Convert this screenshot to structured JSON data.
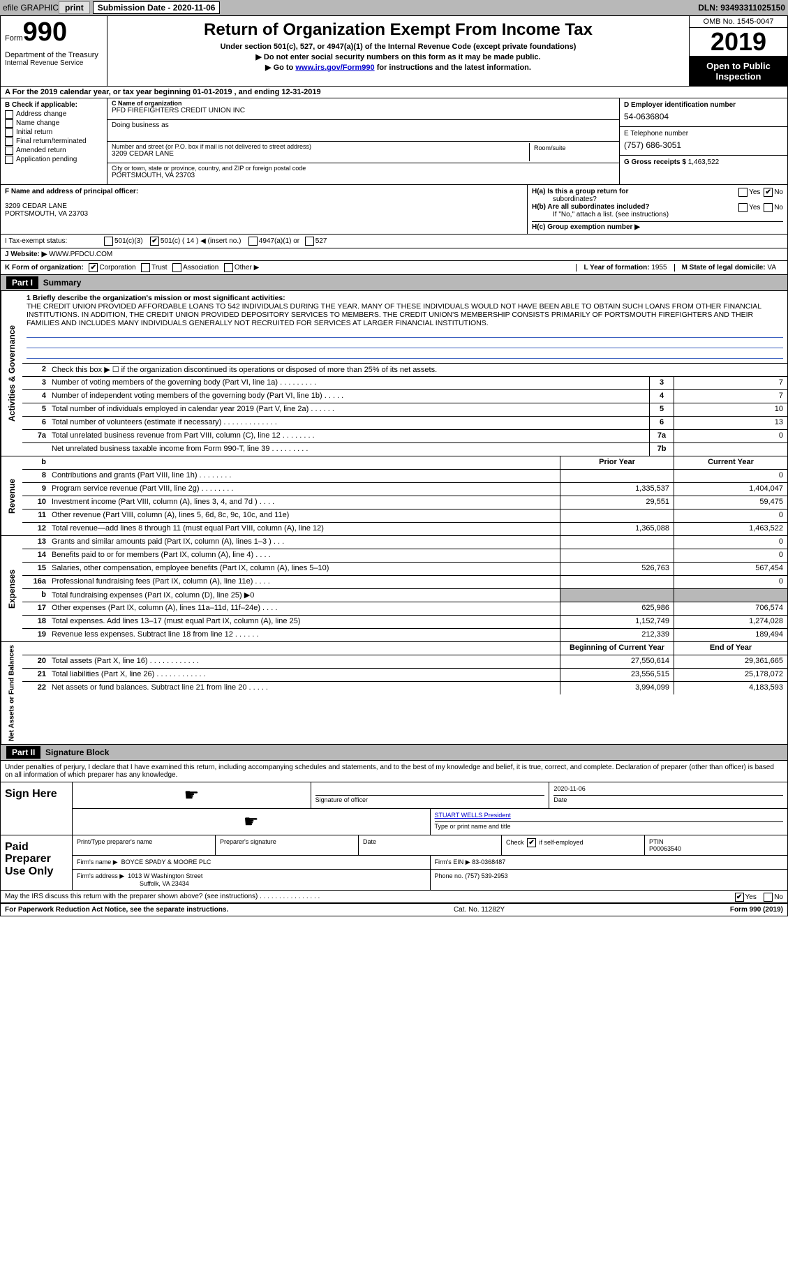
{
  "topbar": {
    "efile_label": "efile GRAPHIC",
    "print_btn": "print",
    "submission_label": "Submission Date - 2020-11-06",
    "dln": "DLN: 93493311025150"
  },
  "header": {
    "form_word": "Form",
    "form_number": "990",
    "dept": "Department of the Treasury",
    "irs": "Internal Revenue Service",
    "title": "Return of Organization Exempt From Income Tax",
    "sub1": "Under section 501(c), 527, or 4947(a)(1) of the Internal Revenue Code (except private foundations)",
    "sub2": "▶ Do not enter social security numbers on this form as it may be made public.",
    "sub3_pre": "▶ Go to ",
    "sub3_link": "www.irs.gov/Form990",
    "sub3_post": " for instructions and the latest information.",
    "omb": "OMB No. 1545-0047",
    "year": "2019",
    "open": "Open to Public Inspection"
  },
  "row_a": "A For the 2019 calendar year, or tax year beginning 01-01-2019     , and ending 12-31-2019",
  "col_b": {
    "label": "B Check if applicable:",
    "items": [
      "Address change",
      "Name change",
      "Initial return",
      "Final return/terminated",
      "Amended return",
      "Application pending"
    ]
  },
  "col_c": {
    "name_lbl": "C Name of organization",
    "name": "PFD FIREFIGHTERS CREDIT UNION INC",
    "dba_lbl": "Doing business as",
    "dba": "",
    "addr_lbl": "Number and street (or P.O. box if mail is not delivered to street address)",
    "addr": "3209 CEDAR LANE",
    "room_lbl": "Room/suite",
    "city_lbl": "City or town, state or province, country, and ZIP or foreign postal code",
    "city": "PORTSMOUTH, VA  23703"
  },
  "col_d": {
    "ein_lbl": "D Employer identification number",
    "ein": "54-0636804",
    "tel_lbl": "E Telephone number",
    "tel": "(757) 686-3051",
    "gross_lbl": "G Gross receipts $",
    "gross": "1,463,522"
  },
  "row_f": {
    "lbl": "F Name and address of principal officer:",
    "addr1": "3209 CEDAR LANE",
    "addr2": "PORTSMOUTH, VA  23703"
  },
  "row_h": {
    "ha": "H(a)  Is this a group return for",
    "ha2": "subordinates?",
    "hb": "H(b)  Are all subordinates included?",
    "hb2": "If \"No,\" attach a list. (see instructions)",
    "hc": "H(c)  Group exemption number ▶",
    "yes": "Yes",
    "no": "No"
  },
  "row_i": {
    "lbl": "I   Tax-exempt status:",
    "o1": "501(c)(3)",
    "o2": "501(c) ( 14 ) ◀ (insert no.)",
    "o3": "4947(a)(1) or",
    "o4": "527"
  },
  "row_j": {
    "lbl": "J   Website: ▶",
    "val": "WWW.PFDCU.COM"
  },
  "row_k": {
    "lbl": "K Form of organization:",
    "o1": "Corporation",
    "o2": "Trust",
    "o3": "Association",
    "o4": "Other ▶",
    "l_lbl": "L Year of formation:",
    "l_val": "1955",
    "m_lbl": "M State of legal domicile:",
    "m_val": "VA"
  },
  "part1": {
    "hdr": "Part I",
    "title": "Summary",
    "side_gov": "Activities & Governance",
    "side_rev": "Revenue",
    "side_exp": "Expenses",
    "side_net": "Net Assets or Fund Balances",
    "line1_lbl": "1  Briefly describe the organization's mission or most significant activities:",
    "mission": "THE CREDIT UNION PROVIDED AFFORDABLE LOANS TO 542 INDIVIDUALS DURING THE YEAR. MANY OF THESE INDIVIDUALS WOULD NOT HAVE BEEN ABLE TO OBTAIN SUCH LOANS FROM OTHER FINANCIAL INSTITUTIONS. IN ADDITION, THE CREDIT UNION PROVIDED DEPOSITORY SERVICES TO MEMBERS. THE CREDIT UNION'S MEMBERSHIP CONSISTS PRIMARILY OF PORTSMOUTH FIREFIGHTERS AND THEIR FAMILIES AND INCLUDES MANY INDIVIDUALS GENERALLY NOT RECRUITED FOR SERVICES AT LARGER FINANCIAL INSTITUTIONS.",
    "line2": "Check this box ▶ ☐ if the organization discontinued its operations or disposed of more than 25% of its net assets.",
    "rows_gov": [
      {
        "n": "3",
        "d": "Number of voting members of the governing body (Part VI, line 1a)   .    .    .    .    .    .    .    .    .",
        "b": "3",
        "v": "7"
      },
      {
        "n": "4",
        "d": "Number of independent voting members of the governing body (Part VI, line 1b)    .    .    .    .    .",
        "b": "4",
        "v": "7"
      },
      {
        "n": "5",
        "d": "Total number of individuals employed in calendar year 2019 (Part V, line 2a)    .    .    .    .    .    .",
        "b": "5",
        "v": "10"
      },
      {
        "n": "6",
        "d": "Total number of volunteers (estimate if necessary)    .    .    .    .    .    .    .    .    .    .    .    .    .",
        "b": "6",
        "v": "13"
      },
      {
        "n": "7a",
        "d": "Total unrelated business revenue from Part VIII, column (C), line 12    .    .    .    .    .    .    .    .",
        "b": "7a",
        "v": "0"
      },
      {
        "n": "",
        "d": "Net unrelated business taxable income from Form 990-T, line 39    .    .    .    .    .    .    .    .    .",
        "b": "7b",
        "v": ""
      }
    ],
    "col_hdr_b": "b",
    "col_hdr_prior": "Prior Year",
    "col_hdr_curr": "Current Year",
    "rows_rev": [
      {
        "n": "8",
        "d": "Contributions and grants (Part VIII, line 1h)    .    .    .    .    .    .    .    .",
        "p": "",
        "c": "0"
      },
      {
        "n": "9",
        "d": "Program service revenue (Part VIII, line 2g)    .    .    .    .    .    .    .    .",
        "p": "1,335,537",
        "c": "1,404,047"
      },
      {
        "n": "10",
        "d": "Investment income (Part VIII, column (A), lines 3, 4, and 7d )    .    .    .    .",
        "p": "29,551",
        "c": "59,475"
      },
      {
        "n": "11",
        "d": "Other revenue (Part VIII, column (A), lines 5, 6d, 8c, 9c, 10c, and 11e)",
        "p": "",
        "c": "0"
      },
      {
        "n": "12",
        "d": "Total revenue—add lines 8 through 11 (must equal Part VIII, column (A), line 12)",
        "p": "1,365,088",
        "c": "1,463,522"
      }
    ],
    "rows_exp": [
      {
        "n": "13",
        "d": "Grants and similar amounts paid (Part IX, column (A), lines 1–3 )    .    .    .",
        "p": "",
        "c": "0"
      },
      {
        "n": "14",
        "d": "Benefits paid to or for members (Part IX, column (A), line 4)    .    .    .    .",
        "p": "",
        "c": "0"
      },
      {
        "n": "15",
        "d": "Salaries, other compensation, employee benefits (Part IX, column (A), lines 5–10)",
        "p": "526,763",
        "c": "567,454"
      },
      {
        "n": "16a",
        "d": "Professional fundraising fees (Part IX, column (A), line 11e)    .    .    .    .",
        "p": "",
        "c": "0"
      },
      {
        "n": "b",
        "d": "Total fundraising expenses (Part IX, column (D), line 25) ▶0",
        "p": "shaded",
        "c": "shaded"
      },
      {
        "n": "17",
        "d": "Other expenses (Part IX, column (A), lines 11a–11d, 11f–24e)    .    .    .    .",
        "p": "625,986",
        "c": "706,574"
      },
      {
        "n": "18",
        "d": "Total expenses. Add lines 13–17 (must equal Part IX, column (A), line 25)",
        "p": "1,152,749",
        "c": "1,274,028"
      },
      {
        "n": "19",
        "d": "Revenue less expenses. Subtract line 18 from line 12    .    .    .    .    .    .",
        "p": "212,339",
        "c": "189,494"
      }
    ],
    "net_hdr_beg": "Beginning of Current Year",
    "net_hdr_end": "End of Year",
    "rows_net": [
      {
        "n": "20",
        "d": "Total assets (Part X, line 16)    .    .    .    .    .    .    .    .    .    .    .    .",
        "p": "27,550,614",
        "c": "29,361,665"
      },
      {
        "n": "21",
        "d": "Total liabilities (Part X, line 26)    .    .    .    .    .    .    .    .    .    .    .    .",
        "p": "23,556,515",
        "c": "25,178,072"
      },
      {
        "n": "22",
        "d": "Net assets or fund balances. Subtract line 21 from line 20    .    .    .    .    .",
        "p": "3,994,099",
        "c": "4,183,593"
      }
    ]
  },
  "part2": {
    "hdr": "Part II",
    "title": "Signature Block",
    "intro": "Under penalties of perjury, I declare that I have examined this return, including accompanying schedules and statements, and to the best of my knowledge and belief, it is true, correct, and complete. Declaration of preparer (other than officer) is based on all information of which preparer has any knowledge.",
    "sign_here": "Sign Here",
    "sig_officer_lbl": "Signature of officer",
    "sig_date": "2020-11-06",
    "date_lbl": "Date",
    "officer_name": "STUART WELLS  President",
    "officer_name_lbl": "Type or print name and title",
    "paid_prep": "Paid Preparer Use Only",
    "prep_name_lbl": "Print/Type preparer's name",
    "prep_sig_lbl": "Preparer's signature",
    "prep_date_lbl": "Date",
    "check_if": "Check",
    "self_emp": "if self-employed",
    "ptin_lbl": "PTIN",
    "ptin": "P00063540",
    "firm_name_lbl": "Firm's name      ▶",
    "firm_name": "BOYCE SPADY & MOORE PLC",
    "firm_ein_lbl": "Firm's EIN ▶",
    "firm_ein": "83-0368487",
    "firm_addr_lbl": "Firm's address ▶",
    "firm_addr1": "1013 W Washington Street",
    "firm_addr2": "Suffolk, VA  23434",
    "phone_lbl": "Phone no.",
    "phone": "(757) 539-2953",
    "may_irs": "May the IRS discuss this return with the preparer shown above? (see instructions)    .    .    .    .    .    .    .    .    .    .    .    .    .    .    .    .",
    "yes": "Yes",
    "no": "No"
  },
  "footer": {
    "left": "For Paperwork Reduction Act Notice, see the separate instructions.",
    "mid": "Cat. No. 11282Y",
    "right": "Form 990 (2019)"
  }
}
